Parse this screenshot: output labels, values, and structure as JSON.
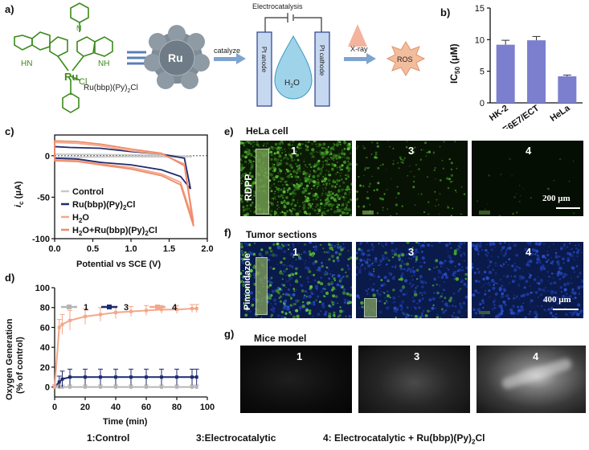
{
  "panels": {
    "a": "a)",
    "b": "b)",
    "c": "c)",
    "d": "d)",
    "e": "e)",
    "f": "f)",
    "g": "g)"
  },
  "schematic": {
    "complex_label": "Ru(bbp)(Py)",
    "complex_sub": "2",
    "complex_suffix": "Cl",
    "atoms": {
      "ru": "Ru",
      "cl": "Cl",
      "n": "N",
      "hn": "HN",
      "nh": "NH",
      "h": "H"
    },
    "sphere_label": "Ru",
    "catalyze": "catalyze",
    "electrocatalysis": "Electrocatalysis",
    "anode": "Pt anode",
    "cathode": "Pt cathode",
    "water": "H",
    "water_sub": "2",
    "water_o": "O",
    "xray": "X-ray",
    "ros": "ROS"
  },
  "ic50": {
    "ylabel": "IC",
    "ylabel_sub": "50",
    "ylabel_unit": " (μM)",
    "chart_data": {
      "type": "bar",
      "categories": [
        "HK-2",
        "E6E7/ECT",
        "HeLa"
      ],
      "values": [
        9.2,
        9.9,
        4.2
      ],
      "errors": [
        0.7,
        0.6,
        0.2
      ],
      "ylim": [
        0,
        15
      ],
      "yticks": [
        "0",
        "5",
        "10",
        "15"
      ],
      "color": "#7b7fcd"
    }
  },
  "cv": {
    "ylabel_i": "i",
    "ylabel_sub": "c",
    "ylabel_unit": " (μA)",
    "xlabel": "Potential vs SCE (V)",
    "xticks": [
      "0.0",
      "0.5",
      "1.0",
      "1.5",
      "2.0"
    ],
    "yticks": [
      "0",
      "-50",
      "-100"
    ],
    "legend": [
      {
        "text": "Control",
        "color": "#c8c8c8"
      },
      {
        "text": "Ru(bbp)(Py)",
        "sub": "2",
        "tail": "Cl",
        "color": "#1f2a6e"
      },
      {
        "text": "H",
        "sub": "2",
        "tail": "O",
        "color": "#f3a78a"
      },
      {
        "text": "H",
        "sub": "2",
        "tail": "O+Ru(bbp)(Py)",
        "sub2": "2",
        "tail2": "Cl",
        "color": "#ef8a68"
      }
    ],
    "chart_data": {
      "type": "line",
      "xlim": [
        0,
        2.0
      ],
      "ylim": [
        -100,
        25
      ],
      "series": [
        {
          "name": "Control",
          "color": "#c8c8c8",
          "upper": [
            [
              0,
              2
            ],
            [
              0.5,
              1.5
            ],
            [
              1.0,
              1
            ],
            [
              1.5,
              0.5
            ],
            [
              1.8,
              -1
            ]
          ],
          "lower": [
            [
              0,
              -2
            ],
            [
              0.5,
              -1.5
            ],
            [
              1.0,
              -1
            ],
            [
              1.5,
              -1.5
            ],
            [
              1.8,
              -1
            ]
          ]
        },
        {
          "name": "Ru(bbp)(Py)2Cl",
          "color": "#1f2a6e",
          "upper": [
            [
              0,
              11
            ],
            [
              0.2,
              10
            ],
            [
              0.6,
              9
            ],
            [
              1.0,
              5
            ],
            [
              1.4,
              2
            ],
            [
              1.7,
              -3
            ],
            [
              1.78,
              -40
            ]
          ],
          "lower": [
            [
              0,
              -3
            ],
            [
              0.3,
              -4
            ],
            [
              0.6,
              -8
            ],
            [
              1.0,
              -11
            ],
            [
              1.4,
              -17
            ],
            [
              1.65,
              -25
            ],
            [
              1.78,
              -40
            ]
          ]
        },
        {
          "name": "H2O",
          "color": "#f3a78a",
          "upper": [
            [
              0,
              16
            ],
            [
              0.3,
              15
            ],
            [
              0.6,
              12
            ],
            [
              1.0,
              6
            ],
            [
              1.4,
              2
            ],
            [
              1.7,
              -10
            ],
            [
              1.82,
              -80
            ]
          ],
          "lower": [
            [
              0,
              -5
            ],
            [
              0.3,
              -6
            ],
            [
              0.6,
              -10
            ],
            [
              1.0,
              -14
            ],
            [
              1.4,
              -22
            ],
            [
              1.65,
              -32
            ],
            [
              1.82,
              -80
            ]
          ]
        },
        {
          "name": "H2O+Ru(bbp)(Py)2Cl",
          "color": "#ef8a68",
          "upper": [
            [
              0,
              18
            ],
            [
              0.3,
              17
            ],
            [
              0.6,
              14
            ],
            [
              1.0,
              8
            ],
            [
              1.4,
              3
            ],
            [
              1.7,
              -12
            ],
            [
              1.82,
              -85
            ]
          ],
          "lower": [
            [
              0,
              -6
            ],
            [
              0.3,
              -7
            ],
            [
              0.6,
              -11
            ],
            [
              1.0,
              -16
            ],
            [
              1.4,
              -24
            ],
            [
              1.65,
              -35
            ],
            [
              1.82,
              -85
            ]
          ]
        }
      ]
    }
  },
  "oxygen": {
    "ylabel1": "Oxygen Generation",
    "ylabel2": "(% of control)",
    "xlabel": "Time (min)",
    "xticks": [
      "0",
      "20",
      "40",
      "60",
      "80",
      "100"
    ],
    "yticks": [
      "0",
      "20",
      "40",
      "60",
      "80",
      "100"
    ],
    "legend": [
      {
        "text": "1",
        "color": "#b5b5b5"
      },
      {
        "text": "3",
        "color": "#1f2a6e"
      },
      {
        "text": "4",
        "color": "#f3a78a"
      }
    ],
    "chart_data": {
      "type": "line",
      "xlim": [
        0,
        100
      ],
      "ylim": [
        -10,
        100
      ],
      "series": [
        {
          "name": "1",
          "color": "#b5b5b5",
          "x": [
            0,
            3,
            5,
            10,
            20,
            30,
            40,
            50,
            60,
            70,
            80,
            90,
            93
          ],
          "y": [
            0,
            0,
            0,
            0,
            0,
            0,
            0,
            0,
            0,
            0,
            0,
            0,
            0
          ],
          "err": [
            2,
            2,
            2,
            2,
            2,
            2,
            2,
            2,
            2,
            2,
            2,
            2,
            2
          ]
        },
        {
          "name": "3",
          "color": "#1f2a6e",
          "x": [
            0,
            3,
            5,
            10,
            20,
            30,
            40,
            50,
            60,
            70,
            80,
            90,
            93
          ],
          "y": [
            0,
            5,
            8,
            10,
            10,
            10,
            10,
            10,
            10,
            10,
            10,
            10,
            10
          ],
          "err": [
            2,
            6,
            8,
            8,
            8,
            8,
            8,
            8,
            8,
            8,
            8,
            8,
            8
          ]
        },
        {
          "name": "4",
          "color": "#f3a78a",
          "x": [
            0,
            3,
            5,
            10,
            20,
            30,
            40,
            50,
            60,
            70,
            80,
            90,
            93
          ],
          "y": [
            0,
            60,
            63,
            67,
            71,
            73,
            75,
            76,
            77,
            78,
            78,
            79,
            79
          ],
          "err": [
            2,
            8,
            10,
            10,
            8,
            7,
            6,
            5,
            5,
            4,
            4,
            4,
            4
          ]
        }
      ]
    }
  },
  "imaging": {
    "e_title": "HeLa cell",
    "f_title": "Tumor sections",
    "g_title": "Mice model",
    "rdpp": "RDPP",
    "pimonidazole": "Pimonidazole",
    "nums": [
      "1",
      "3",
      "4"
    ],
    "scale_e": "200 μm",
    "scale_f": "400 μm"
  },
  "footer": {
    "c1": "1:Control",
    "c3": "3:Electrocatalytic",
    "c4": "4: Electrocatalytic + Ru(bbp)(Py)",
    "c4_sub": "2",
    "c4_tail": "Cl"
  }
}
